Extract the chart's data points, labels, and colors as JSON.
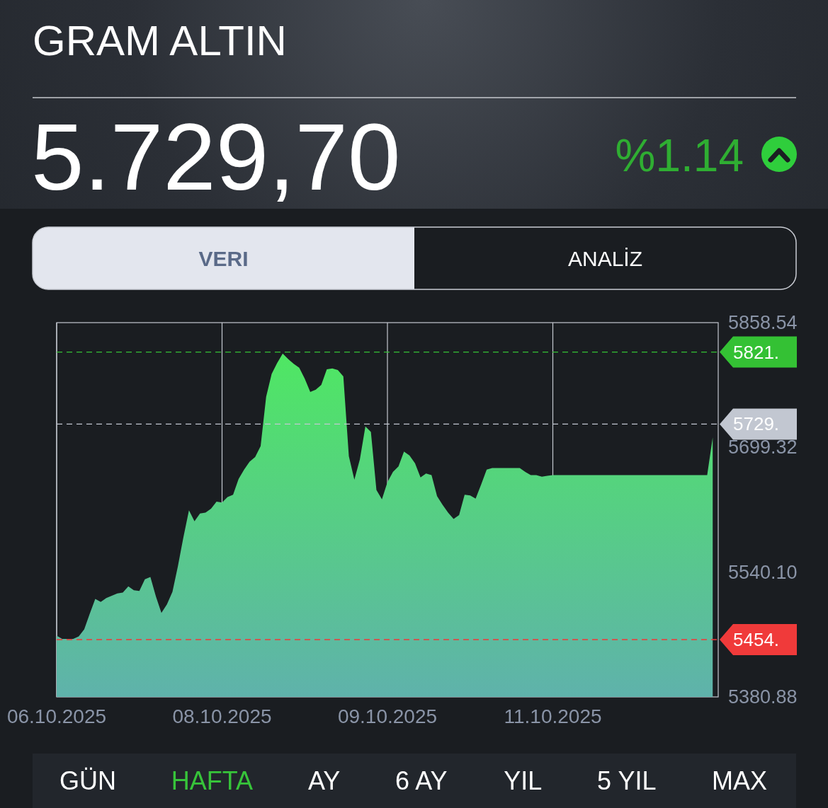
{
  "chart_data": {
    "type": "area",
    "title": "GRAM ALTIN",
    "subtitle": "5.729,70",
    "annotations": [
      "%1.14",
      "VERI",
      "ANALİZ",
      "GÜN",
      "HAFTA",
      "AY",
      "6 AY",
      "YIL",
      "5 YIL",
      "MAX"
    ],
    "categories": [
      "06.10.2025",
      null,
      null,
      null,
      null,
      null,
      null,
      null,
      null,
      null,
      null,
      null,
      null,
      null,
      null,
      null,
      null,
      null,
      null,
      null,
      null,
      null,
      null,
      null,
      null,
      null,
      null,
      null,
      null,
      null,
      "08.10.2025",
      null,
      null,
      null,
      null,
      null,
      null,
      null,
      null,
      null,
      null,
      null,
      null,
      null,
      null,
      null,
      null,
      null,
      null,
      null,
      null,
      null,
      null,
      null,
      null,
      null,
      null,
      null,
      null,
      null,
      "09.10.2025",
      null,
      null,
      null,
      null,
      null,
      null,
      null,
      null,
      null,
      null,
      null,
      null,
      null,
      null,
      null,
      null,
      null,
      null,
      null,
      null,
      null,
      null,
      null,
      null,
      null,
      null,
      null,
      null,
      null,
      "11.10.2025",
      null,
      null,
      null,
      null,
      null,
      null,
      null,
      null,
      null,
      null,
      null,
      null,
      null,
      null,
      null,
      null,
      null,
      null,
      null,
      null,
      null,
      null,
      null,
      null,
      null,
      null,
      null,
      null,
      null
    ],
    "values": [
      5459,
      5455,
      5455,
      5455,
      5458,
      5467,
      5487,
      5506,
      5502,
      5507,
      5510,
      5513,
      5514,
      5522,
      5517,
      5516,
      5531,
      5534,
      5509,
      5488,
      5499,
      5515,
      5548,
      5585,
      5619,
      5605,
      5615,
      5616,
      5621,
      5630,
      5629,
      5636,
      5639,
      5659,
      5671,
      5681,
      5687,
      5701,
      5764,
      5793,
      5807,
      5819,
      5812,
      5806,
      5801,
      5787,
      5770,
      5773,
      5779,
      5799,
      5800,
      5798,
      5790,
      5688,
      5658,
      5684,
      5726,
      5719,
      5645,
      5633,
      5655,
      5668,
      5675,
      5694,
      5689,
      5679,
      5661,
      5666,
      5664,
      5637,
      5626,
      5616,
      5608,
      5613,
      5639,
      5638,
      5634,
      5652,
      5671,
      5673,
      5673,
      5673,
      5673,
      5673,
      5673,
      5668,
      5664,
      5664,
      5662,
      5663,
      5664,
      5664,
      5664,
      5664,
      5664,
      5664,
      5664,
      5664,
      5664,
      5664,
      5664,
      5664,
      5664,
      5664,
      5664,
      5664,
      5664,
      5664,
      5664,
      5664,
      5664,
      5664,
      5664,
      5664,
      5664,
      5664,
      5664,
      5664,
      5664,
      5712
    ],
    "color": "#4fe763",
    "ylim": [
      5380.88,
      5858.54
    ],
    "yticks": [
      {
        "value": 5380.88,
        "label": "5380.88"
      },
      {
        "value": 5540.1,
        "label": "5540.10"
      },
      {
        "value": 5699.32,
        "label": "5699.32"
      },
      {
        "value": 5858.54,
        "label": "5858.54"
      }
    ],
    "grid": "x",
    "ref_lines": [
      {
        "axis": "y",
        "value": 5821,
        "label": "5821.",
        "color": "#34c134",
        "line_style": "dashed"
      },
      {
        "axis": "y",
        "value": 5729,
        "label": "5729.",
        "color": "#c2c7d1",
        "line_style": "dashed"
      },
      {
        "axis": "y",
        "value": 5454,
        "label": "5454.",
        "color": "#f03a3a",
        "line_style": "dashed"
      }
    ]
  }
}
